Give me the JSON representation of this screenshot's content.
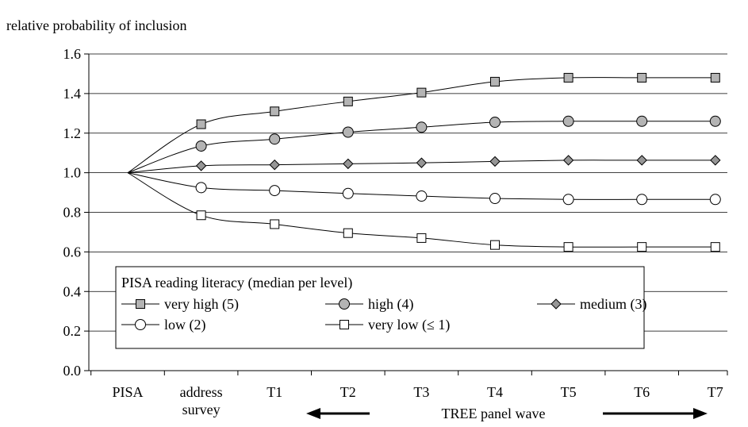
{
  "chart_data": {
    "type": "line",
    "title": "",
    "ylabel": "relative probability of inclusion",
    "xlabel": "TREE panel wave",
    "ylim": [
      0,
      1.6
    ],
    "y_ticks": [
      "0.0",
      "0.2",
      "0.4",
      "0.6",
      "0.8",
      "1.0",
      "1.2",
      "1.4",
      "1.6"
    ],
    "categories": [
      "PISA",
      "address survey",
      "T1",
      "T2",
      "T3",
      "T4",
      "T5",
      "T6",
      "T7"
    ],
    "grid": "horizontal",
    "legend": {
      "title": "PISA reading literacy (median per level)",
      "placement": "lower-left"
    },
    "series": [
      {
        "name": "very high (5)",
        "marker": "square",
        "fill": "#b4b4b4",
        "values": [
          1.0,
          1.245,
          1.31,
          1.36,
          1.405,
          1.46,
          1.48,
          1.48,
          1.48
        ]
      },
      {
        "name": "high (4)",
        "marker": "circle",
        "fill": "#b4b4b4",
        "values": [
          1.0,
          1.135,
          1.17,
          1.205,
          1.23,
          1.255,
          1.26,
          1.26,
          1.26
        ]
      },
      {
        "name": "medium (3)",
        "marker": "diamond",
        "fill": "#969696",
        "values": [
          1.0,
          1.035,
          1.04,
          1.045,
          1.05,
          1.057,
          1.063,
          1.063,
          1.063
        ]
      },
      {
        "name": "low (2)",
        "marker": "circle",
        "fill": "#ffffff",
        "values": [
          1.0,
          0.925,
          0.91,
          0.895,
          0.882,
          0.87,
          0.865,
          0.865,
          0.865
        ]
      },
      {
        "name": "very low (≤ 1)",
        "marker": "square",
        "fill": "#ffffff",
        "values": [
          1.0,
          0.785,
          0.74,
          0.695,
          0.67,
          0.635,
          0.625,
          0.625,
          0.625
        ]
      }
    ]
  }
}
